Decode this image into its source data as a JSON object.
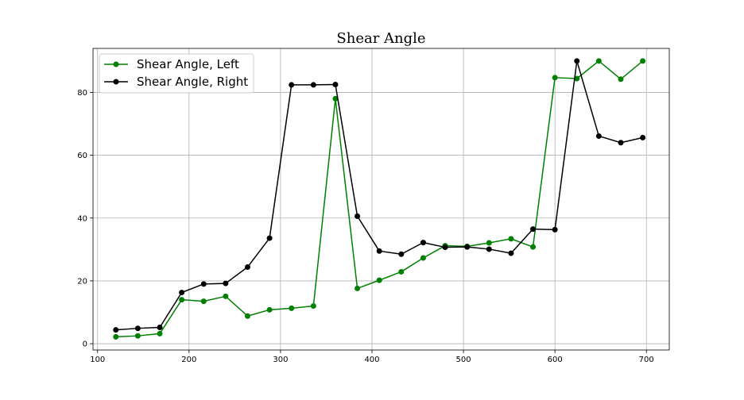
{
  "chart_data": {
    "type": "line",
    "title": "Shear Angle",
    "xlabel": "",
    "ylabel": "",
    "xlim": [
      95,
      725
    ],
    "ylim": [
      -2,
      94
    ],
    "xticks": [
      100,
      200,
      300,
      400,
      500,
      600,
      700
    ],
    "yticks": [
      0,
      20,
      40,
      60,
      80
    ],
    "grid": true,
    "legend_position": "upper-left",
    "series": [
      {
        "name": "Shear Angle, Left",
        "color": "#008000",
        "marker": "circle",
        "x": [
          120,
          144,
          168,
          192,
          216,
          240,
          264,
          288,
          312,
          336,
          360,
          384,
          408,
          432,
          456,
          480,
          504,
          528,
          552,
          576,
          600,
          624,
          648,
          672,
          696
        ],
        "y": [
          2.2,
          2.5,
          3.2,
          14.0,
          13.5,
          15.1,
          8.8,
          10.8,
          11.3,
          12.0,
          78.0,
          17.6,
          20.2,
          22.9,
          27.3,
          31.2,
          31.0,
          32.1,
          33.4,
          30.8,
          84.7,
          84.4,
          90.0,
          84.2,
          90.0
        ]
      },
      {
        "name": "Shear Angle, Right",
        "color": "#000000",
        "marker": "circle",
        "x": [
          120,
          144,
          168,
          192,
          216,
          240,
          264,
          288,
          312,
          336,
          360,
          384,
          408,
          432,
          456,
          480,
          504,
          528,
          552,
          576,
          600,
          624,
          648,
          672,
          696
        ],
        "y": [
          4.4,
          4.9,
          5.2,
          16.3,
          19.0,
          19.2,
          24.4,
          33.6,
          82.4,
          82.4,
          82.5,
          40.6,
          29.5,
          28.5,
          32.2,
          30.7,
          30.8,
          30.1,
          28.8,
          36.5,
          36.3,
          90.0,
          66.1,
          64.0,
          65.6
        ]
      }
    ]
  }
}
